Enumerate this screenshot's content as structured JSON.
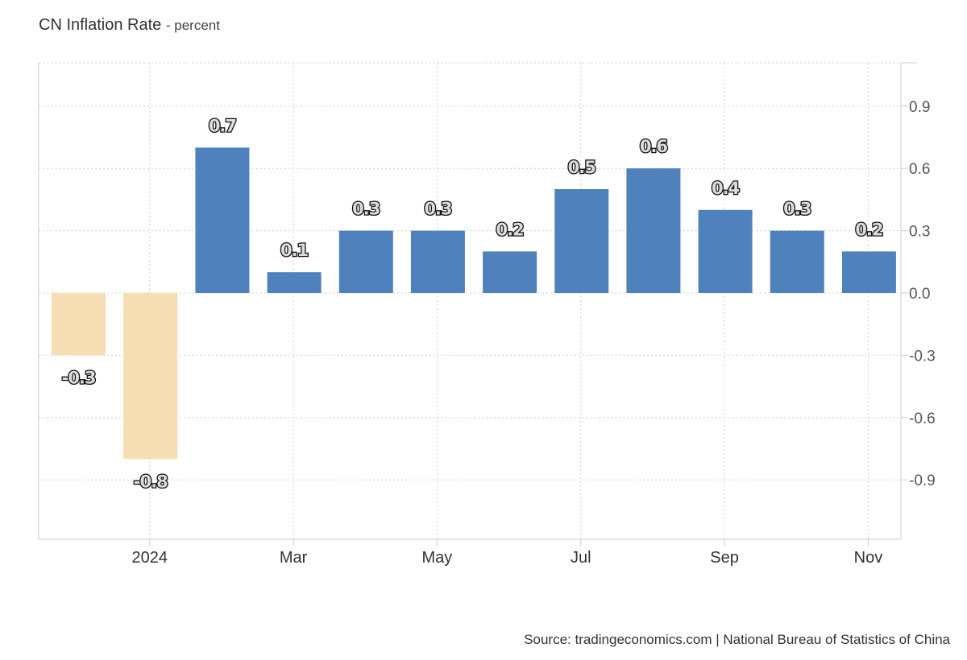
{
  "header": {
    "title": "CN Inflation Rate",
    "subtitle": "- percent"
  },
  "footer": {
    "source": "Source: tradingeconomics.com | National Bureau of Statistics of China"
  },
  "colors": {
    "positive": "#4f81bd",
    "negative": "#f5deb3",
    "grid": "#d0d0d0",
    "axis": "#cccccc"
  },
  "chart_data": {
    "type": "bar",
    "title": "CN Inflation Rate",
    "subtitle": "percent",
    "categories": [
      "2023-12",
      "2024-01",
      "2024-02",
      "2024-03",
      "2024-04",
      "2024-05",
      "2024-06",
      "2024-07",
      "2024-08",
      "2024-09",
      "2024-10",
      "2024-11"
    ],
    "values": [
      -0.3,
      -0.8,
      0.7,
      0.1,
      0.3,
      0.3,
      0.2,
      0.5,
      0.6,
      0.4,
      0.3,
      0.2
    ],
    "data_labels": [
      "-0.3",
      "-0.8",
      "0.7",
      "0.1",
      "0.3",
      "0.3",
      "0.2",
      "0.5",
      "0.6",
      "0.4",
      "0.3",
      "0.2"
    ],
    "x_ticks": [
      "2024",
      "Mar",
      "May",
      "Jul",
      "Sep",
      "Nov"
    ],
    "y_ticks": [
      "0.9",
      "0.6",
      "0.3",
      "0.0",
      "-0.3",
      "-0.6",
      "-0.9"
    ],
    "y_tick_values": [
      0.9,
      0.6,
      0.3,
      0.0,
      -0.3,
      -0.6,
      -0.9
    ],
    "ylim": [
      -1.2,
      1.1
    ],
    "grid": true,
    "y_axis_side": "right",
    "legend": "none"
  }
}
